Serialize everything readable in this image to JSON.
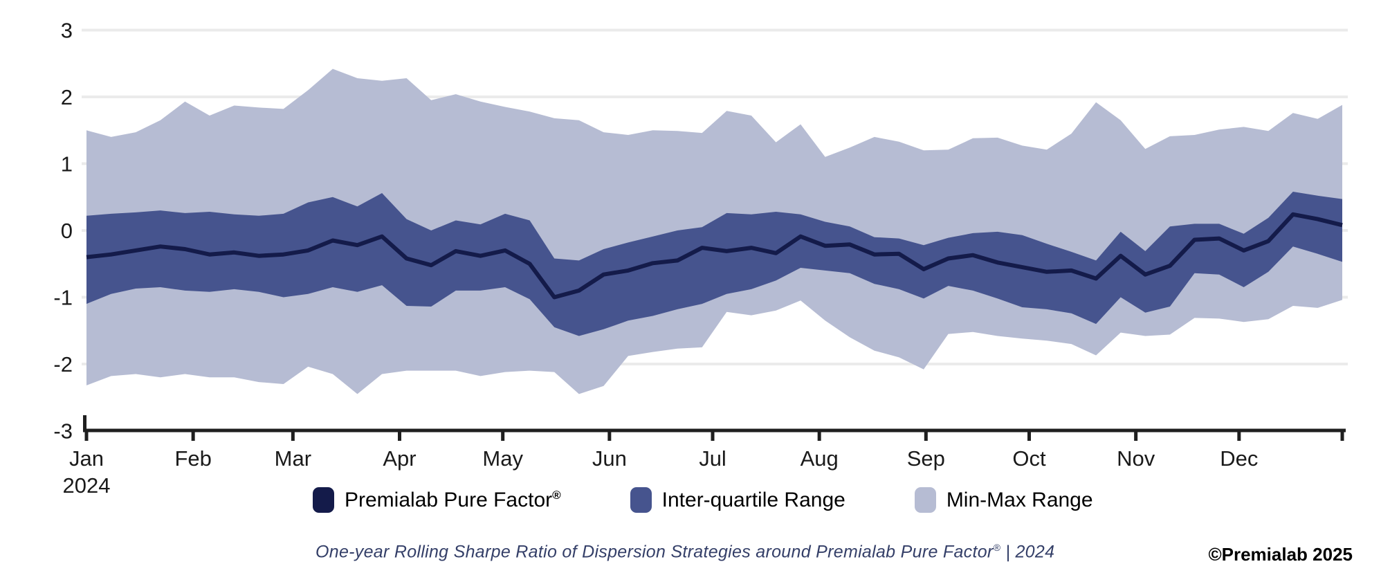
{
  "ui": {
    "legend": {
      "items": [
        {
          "label": "Premialab Pure Factor",
          "mark": "®"
        },
        {
          "label": "Inter-quartile Range",
          "mark": ""
        },
        {
          "label": "Min-Max Range",
          "mark": ""
        }
      ]
    },
    "caption": {
      "text": "One-year Rolling Sharpe Ratio of Dispersion Strategies around Premialab Pure Factor",
      "registered": "®",
      "tail": " | 2024",
      "color": "#343f68"
    },
    "credit": {
      "text": "©Premialab 2025"
    }
  },
  "chart_data": {
    "type": "area",
    "title": "",
    "xlabel": "",
    "ylabel": "",
    "x_unit": "weekly observations, Jan 2024 - Dec 2024",
    "months": [
      "Jan",
      "Feb",
      "Mar",
      "Apr",
      "May",
      "Jun",
      "Jul",
      "Aug",
      "Sep",
      "Oct",
      "Nov",
      "Dec"
    ],
    "year_label": "2024",
    "ylim": [
      -3,
      3
    ],
    "y_ticks": [
      -3,
      -2,
      -1,
      0,
      1,
      2,
      3
    ],
    "y_gridlines": [
      -2,
      -1,
      0,
      1,
      2,
      3
    ],
    "grid_color": "#ebebeb",
    "axis_color": "#1f1f1f",
    "label_color": "#1a1a1a",
    "legend_position": "bottom-center",
    "series": [
      {
        "name": "Premialab Pure Factor®",
        "type": "line",
        "color": "#141b4a",
        "values": [
          -0.4,
          -0.36,
          -0.3,
          -0.24,
          -0.28,
          -0.36,
          -0.33,
          -0.38,
          -0.36,
          -0.3,
          -0.15,
          -0.22,
          -0.09,
          -0.42,
          -0.52,
          -0.31,
          -0.38,
          -0.3,
          -0.5,
          -1.0,
          -0.9,
          -0.66,
          -0.6,
          -0.49,
          -0.45,
          -0.26,
          -0.31,
          -0.26,
          -0.34,
          -0.09,
          -0.23,
          -0.21,
          -0.36,
          -0.35,
          -0.58,
          -0.42,
          -0.37,
          -0.48,
          -0.55,
          -0.62,
          -0.6,
          -0.72,
          -0.38,
          -0.66,
          -0.53,
          -0.14,
          -0.12,
          -0.3,
          -0.16,
          0.24,
          0.17,
          0.08
        ]
      },
      {
        "name": "Inter-quartile Range",
        "type": "band",
        "color": "#46548e",
        "upper": [
          0.22,
          0.25,
          0.27,
          0.3,
          0.26,
          0.28,
          0.24,
          0.22,
          0.25,
          0.42,
          0.5,
          0.36,
          0.56,
          0.17,
          0.0,
          0.15,
          0.09,
          0.25,
          0.15,
          -0.42,
          -0.45,
          -0.28,
          -0.18,
          -0.09,
          0.0,
          0.05,
          0.26,
          0.24,
          0.28,
          0.24,
          0.13,
          0.06,
          -0.1,
          -0.12,
          -0.22,
          -0.11,
          -0.04,
          -0.02,
          -0.07,
          -0.2,
          -0.32,
          -0.45,
          -0.02,
          -0.31,
          0.06,
          0.1,
          0.1,
          -0.05,
          0.19,
          0.58,
          0.52,
          0.47
        ],
        "lower": [
          -1.1,
          -0.95,
          -0.87,
          -0.85,
          -0.9,
          -0.92,
          -0.88,
          -0.92,
          -1.0,
          -0.95,
          -0.85,
          -0.92,
          -0.82,
          -1.13,
          -1.14,
          -0.9,
          -0.9,
          -0.85,
          -1.03,
          -1.45,
          -1.58,
          -1.48,
          -1.35,
          -1.28,
          -1.18,
          -1.1,
          -0.95,
          -0.88,
          -0.75,
          -0.56,
          -0.6,
          -0.64,
          -0.8,
          -0.88,
          -1.02,
          -0.83,
          -0.9,
          -1.02,
          -1.15,
          -1.18,
          -1.24,
          -1.4,
          -1.0,
          -1.23,
          -1.14,
          -0.64,
          -0.66,
          -0.85,
          -0.62,
          -0.24,
          -0.35,
          -0.47
        ]
      },
      {
        "name": "Min-Max Range",
        "type": "band",
        "color": "#b6bcd3",
        "upper": [
          1.5,
          1.4,
          1.47,
          1.65,
          1.93,
          1.72,
          1.87,
          1.84,
          1.82,
          2.1,
          2.42,
          2.28,
          2.24,
          2.28,
          1.95,
          2.04,
          1.93,
          1.85,
          1.78,
          1.68,
          1.65,
          1.47,
          1.43,
          1.5,
          1.49,
          1.46,
          1.79,
          1.72,
          1.32,
          1.59,
          1.1,
          1.24,
          1.4,
          1.33,
          1.2,
          1.21,
          1.38,
          1.39,
          1.27,
          1.21,
          1.45,
          1.92,
          1.65,
          1.22,
          1.41,
          1.43,
          1.51,
          1.55,
          1.49,
          1.76,
          1.67,
          1.88
        ],
        "lower": [
          -2.32,
          -2.18,
          -2.15,
          -2.2,
          -2.15,
          -2.2,
          -2.2,
          -2.27,
          -2.3,
          -2.04,
          -2.15,
          -2.45,
          -2.15,
          -2.1,
          -2.1,
          -2.1,
          -2.18,
          -2.12,
          -2.1,
          -2.12,
          -2.45,
          -2.33,
          -1.88,
          -1.82,
          -1.77,
          -1.75,
          -1.22,
          -1.27,
          -1.2,
          -1.05,
          -1.35,
          -1.6,
          -1.8,
          -1.9,
          -2.08,
          -1.55,
          -1.52,
          -1.58,
          -1.62,
          -1.65,
          -1.7,
          -1.87,
          -1.53,
          -1.58,
          -1.56,
          -1.31,
          -1.32,
          -1.37,
          -1.33,
          -1.13,
          -1.16,
          -1.04
        ]
      }
    ]
  }
}
